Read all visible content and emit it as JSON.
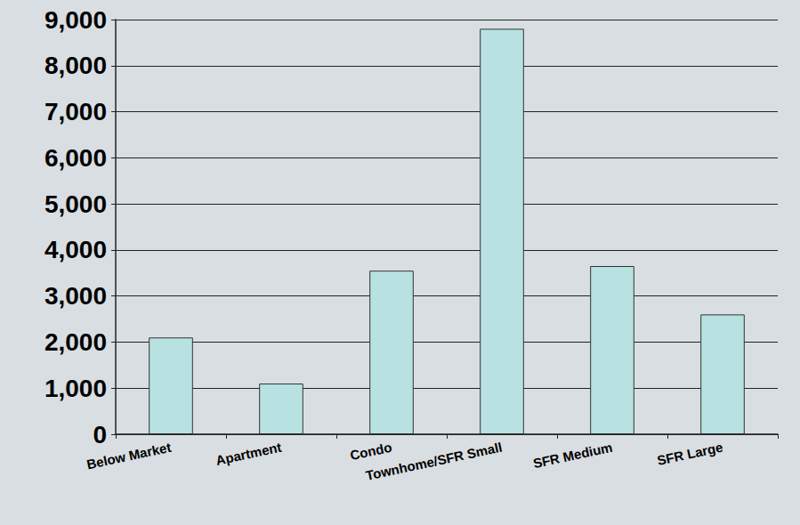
{
  "chart_data": {
    "type": "bar",
    "categories": [
      "Below Market",
      "Apartment",
      "Condo",
      "Townhome/SFR Small",
      "SFR Medium",
      "SFR Large"
    ],
    "values": [
      2100,
      1100,
      3550,
      8800,
      3650,
      2600
    ],
    "color": "#b8e2e2",
    "ylim": [
      0,
      9000
    ],
    "yticks": [
      0,
      {
        "value": 1000,
        "label": "1,000"
      },
      {
        "value": 2000,
        "label": "2,000"
      },
      {
        "value": 3000,
        "label": "3,000"
      },
      {
        "value": 4000,
        "label": "4,000"
      },
      {
        "value": 5000,
        "label": "5,000"
      },
      {
        "value": 6000,
        "label": "6,000"
      },
      {
        "value": 7000,
        "label": "7,000"
      },
      {
        "value": 8000,
        "label": "8,000"
      },
      {
        "value": 9000,
        "label": "9,000"
      }
    ],
    "grid": true
  }
}
